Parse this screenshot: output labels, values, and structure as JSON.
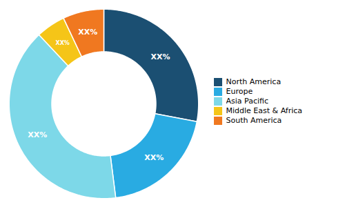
{
  "chart_data": {
    "type": "donut",
    "categories": [
      "North America",
      "Europe",
      "Asia Pacific",
      "Middle East & Africa",
      "South America"
    ],
    "values": [
      28,
      20,
      40,
      5,
      7
    ],
    "value_labels": [
      "XX%",
      "XX%",
      "XX%",
      "XX%",
      "XX%"
    ],
    "colors": [
      "#1b4f72",
      "#29abe2",
      "#7dd8e8",
      "#f5c518",
      "#f07820"
    ],
    "data_labels": true,
    "legend": "right"
  }
}
